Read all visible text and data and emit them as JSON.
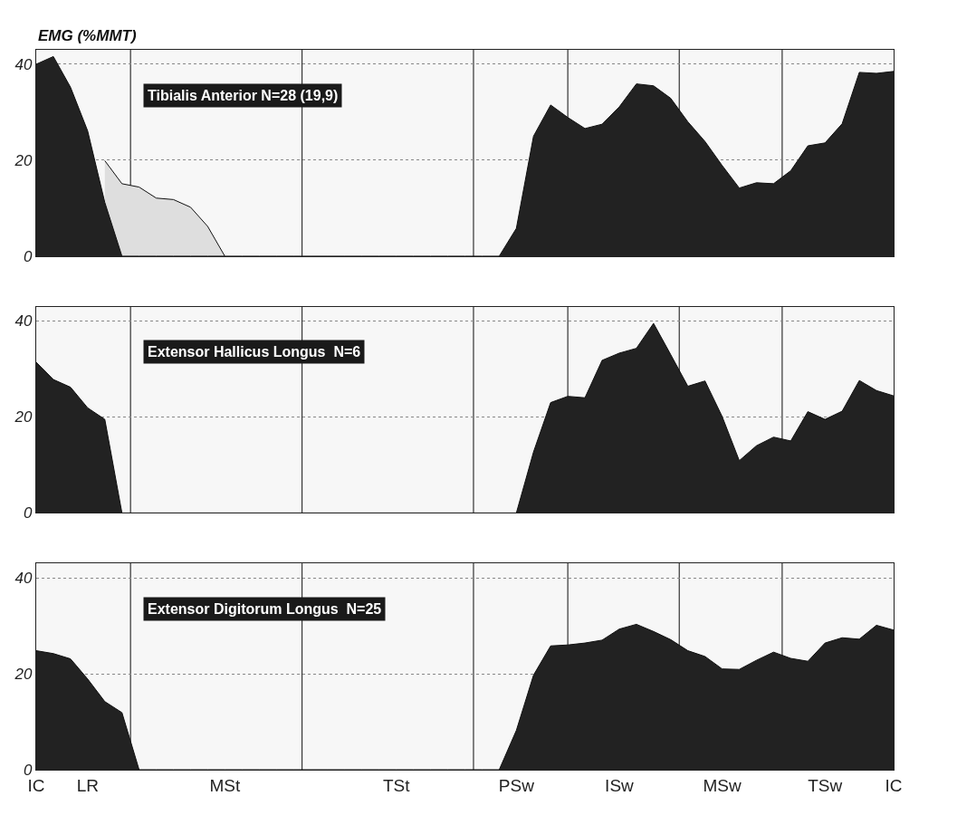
{
  "chart_data": [
    {
      "type": "area",
      "ylabel": "EMG (%MMT)",
      "annotations": [
        "Tibialis Anterior N=28 (19,9)"
      ],
      "ylim": [
        0,
        43
      ],
      "yticks": [
        0,
        20,
        40
      ],
      "grid": true,
      "tick_labels": "y",
      "categories": [
        null,
        null,
        null,
        null,
        null,
        null,
        null,
        null,
        null,
        null,
        null,
        null,
        null,
        null,
        null,
        null,
        null,
        null,
        null,
        null,
        null,
        null,
        null,
        null,
        null,
        null,
        null,
        null,
        null,
        null,
        null,
        null,
        null,
        null,
        null,
        null,
        null,
        null,
        null,
        null,
        null,
        null,
        null,
        null,
        null,
        null,
        null,
        null,
        null,
        null,
        null
      ],
      "series": [
        {
          "color": "#dedede",
          "values": [
            null,
            null,
            null,
            null,
            19.9,
            15.1,
            14.4,
            12.1,
            11.8,
            10.2,
            6.2,
            0,
            null,
            null,
            null,
            null,
            null,
            null,
            null,
            null,
            null,
            null,
            null,
            null,
            null,
            null,
            null,
            null,
            null,
            null,
            null,
            null,
            null,
            null,
            null,
            null,
            null,
            null,
            null,
            null,
            null,
            null,
            null,
            null,
            null,
            null,
            null,
            null,
            null,
            null,
            null
          ]
        },
        {
          "color": "#222222",
          "values": [
            40,
            41.6,
            35.2,
            26.1,
            11.2,
            0,
            0,
            0,
            0,
            0,
            0,
            0,
            0,
            0,
            0,
            0,
            0,
            0,
            0,
            0,
            0,
            0,
            0,
            0,
            0,
            0,
            0,
            0,
            5.8,
            25,
            31.5,
            28.9,
            26.6,
            27.5,
            31.1,
            35.9,
            35.5,
            32.9,
            28,
            23.9,
            18.9,
            14.2,
            15.3,
            15.1,
            17.8,
            23,
            23.6,
            27.6,
            38.3,
            38.1,
            38.5
          ]
        }
      ]
    },
    {
      "type": "area",
      "annotations": [
        "Extensor Hallicus Longus  N=6"
      ],
      "ylim": [
        0,
        43
      ],
      "yticks": [
        0,
        20,
        40
      ],
      "grid": true,
      "tick_labels": "y",
      "categories": [
        null,
        null,
        null,
        null,
        null,
        null,
        null,
        null,
        null,
        null,
        null,
        null,
        null,
        null,
        null,
        null,
        null,
        null,
        null,
        null,
        null,
        null,
        null,
        null,
        null,
        null,
        null,
        null,
        null,
        null,
        null,
        null,
        null,
        null,
        null,
        null,
        null,
        null,
        null,
        null,
        null,
        null,
        null,
        null,
        null,
        null,
        null,
        null,
        null,
        null,
        null
      ],
      "series": [
        {
          "color": "#222222",
          "values": [
            31.4,
            27.8,
            26.2,
            21.9,
            19.5,
            0,
            0,
            0,
            0,
            0,
            0,
            0,
            0,
            0,
            0,
            0,
            0,
            0,
            0,
            0,
            0,
            0,
            0,
            0,
            0,
            0,
            0,
            0,
            0,
            12.7,
            23,
            24.3,
            24,
            31.8,
            33.3,
            34.3,
            39.5,
            33,
            26.4,
            27.5,
            20.1,
            10.9,
            14,
            15.8,
            15,
            21.1,
            19.5,
            21.2,
            27.6,
            25.5,
            24.4
          ]
        }
      ]
    },
    {
      "type": "area",
      "annotations": [
        "Extensor Digitorum Longus  N=25"
      ],
      "ylim": [
        0,
        43
      ],
      "yticks": [
        0,
        20,
        40
      ],
      "grid": true,
      "categories": [
        "IC",
        null,
        null,
        "LR",
        null,
        null,
        null,
        null,
        null,
        null,
        null,
        "MSt",
        null,
        null,
        null,
        null,
        null,
        null,
        null,
        null,
        null,
        "TSt",
        null,
        null,
        null,
        null,
        null,
        null,
        "PSw",
        null,
        null,
        null,
        null,
        null,
        "ISw",
        null,
        null,
        null,
        null,
        null,
        "MSw",
        null,
        null,
        null,
        null,
        null,
        "TSw",
        null,
        null,
        null,
        "IC"
      ],
      "series": [
        {
          "color": "#222222",
          "values": [
            24.8,
            24.2,
            23.1,
            18.9,
            14.2,
            11.9,
            0,
            0,
            0,
            0,
            0,
            0,
            0,
            0,
            0,
            0,
            0,
            0,
            0,
            0,
            0,
            0,
            0,
            0,
            0,
            0,
            0,
            0,
            8.2,
            19.7,
            25.8,
            26,
            26.4,
            27,
            29.3,
            30.3,
            28.8,
            27.1,
            24.8,
            23.6,
            21,
            20.9,
            22.8,
            24.5,
            23.2,
            22.6,
            26.4,
            27.5,
            27.2,
            30.1,
            29.1
          ]
        }
      ]
    }
  ]
}
